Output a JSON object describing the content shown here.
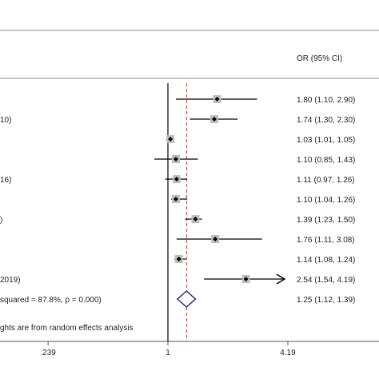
{
  "chart_data": {
    "type": "forest",
    "column_header": "OR (95% CI)",
    "x_scale": "log",
    "x_ticks": [
      {
        "value": 0.239,
        "label": ".239"
      },
      {
        "value": 1,
        "label": "1"
      },
      {
        "value": 4.19,
        "label": "4.19"
      }
    ],
    "null_line": 1,
    "overall_line": 1.25,
    "rows": [
      {
        "label": "",
        "or": 1.8,
        "lo": 1.1,
        "hi": 2.9,
        "ci_text": "1.80 (1.10, 2.90)"
      },
      {
        "label": "10)",
        "or": 1.74,
        "lo": 1.3,
        "hi": 2.3,
        "ci_text": "1.74 (1.30, 2.30)"
      },
      {
        "label": "",
        "or": 1.03,
        "lo": 1.01,
        "hi": 1.05,
        "ci_text": "1.03 (1.01, 1.05)"
      },
      {
        "label": "",
        "or": 1.1,
        "lo": 0.85,
        "hi": 1.43,
        "ci_text": "1.10 (0.85, 1.43)"
      },
      {
        "label": "16)",
        "or": 1.11,
        "lo": 0.97,
        "hi": 1.26,
        "ci_text": "1.11 (0.97, 1.26)"
      },
      {
        "label": "",
        "or": 1.1,
        "lo": 1.04,
        "hi": 1.26,
        "ci_text": "1.10 (1.04, 1.26)"
      },
      {
        "label": ")",
        "or": 1.39,
        "lo": 1.23,
        "hi": 1.5,
        "ci_text": "1.39 (1.23, 1.50)"
      },
      {
        "label": "",
        "or": 1.76,
        "lo": 1.11,
        "hi": 3.08,
        "ci_text": "1.76 (1.11, 3.08)"
      },
      {
        "label": "",
        "or": 1.14,
        "lo": 1.08,
        "hi": 1.24,
        "ci_text": "1.14 (1.08, 1.24)"
      },
      {
        "label": "2019)",
        "or": 2.54,
        "lo": 1.54,
        "hi": 4.19,
        "ci_text": "2.54 (1.54, 4.19)",
        "arrow_right": true
      }
    ],
    "overall": {
      "label": "squared = 87.8%, p = 0.000)",
      "or": 1.25,
      "lo": 1.12,
      "hi": 1.39,
      "ci_text": "1.25 (1.12, 1.39)"
    },
    "footnote": "ghts are from random effects analysis",
    "colors": {
      "box": "#bdbdbd",
      "line": "#000000",
      "diamond": "#1a237e",
      "overall_line": "#c0392b",
      "rule": "#555555"
    }
  }
}
